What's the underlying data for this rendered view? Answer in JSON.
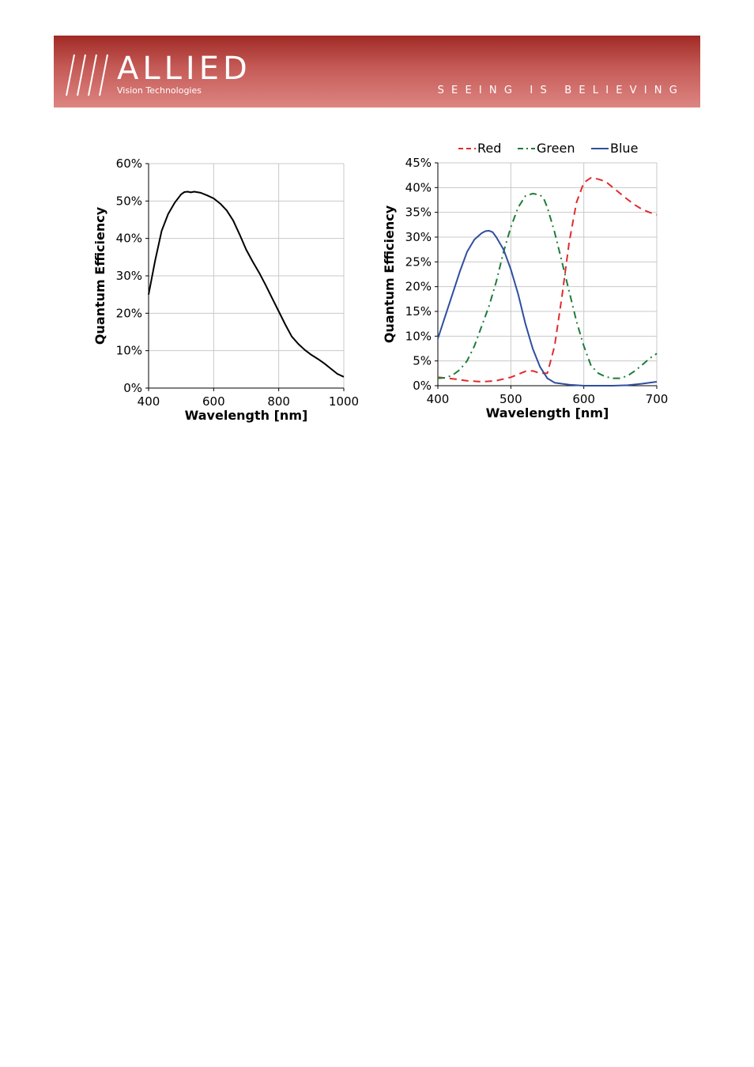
{
  "header": {
    "brand": "ALLIED",
    "brand_sub": "Vision Technologies",
    "tagline": "SEEING IS BELIEVING",
    "colors": {
      "banner_top": "#a12a25",
      "banner_bottom": "#dd8582"
    }
  },
  "chart_data": [
    {
      "type": "line",
      "title": "",
      "xlabel": "Wavelength [nm]",
      "ylabel": "Quantum Efficiency",
      "xlim": [
        400,
        1000
      ],
      "ylim": [
        0,
        60
      ],
      "xticks": [
        400,
        600,
        800,
        1000
      ],
      "xtick_labels": [
        "400",
        "600",
        "800",
        "1000"
      ],
      "yticks": [
        0,
        10,
        20,
        30,
        40,
        50,
        60
      ],
      "ytick_labels": [
        "0%",
        "10%",
        "20%",
        "30%",
        "40%",
        "50%",
        "60%"
      ],
      "grid": true,
      "legend": "none",
      "series": [
        {
          "name": "",
          "color": "#000000",
          "style": "solid",
          "x": [
            400,
            420,
            440,
            460,
            480,
            500,
            510,
            520,
            530,
            540,
            560,
            580,
            600,
            620,
            640,
            660,
            680,
            700,
            720,
            740,
            760,
            780,
            800,
            820,
            840,
            860,
            880,
            900,
            920,
            940,
            960,
            980,
            1000
          ],
          "y": [
            25,
            34,
            42,
            46.5,
            49.5,
            51.8,
            52.4,
            52.5,
            52.3,
            52.5,
            52.2,
            51.5,
            50.7,
            49.3,
            47.5,
            44.8,
            41,
            37,
            33.8,
            30.8,
            27.5,
            24,
            20.5,
            17,
            13.8,
            11.8,
            10.2,
            8.9,
            7.8,
            6.6,
            5.2,
            3.8,
            3
          ]
        }
      ]
    },
    {
      "type": "line",
      "title": "",
      "xlabel": "Wavelength [nm]",
      "ylabel": "Quantum Efficiency",
      "xlim": [
        400,
        700
      ],
      "ylim": [
        0,
        45
      ],
      "xticks": [
        400,
        500,
        600,
        700
      ],
      "xtick_labels": [
        "400",
        "500",
        "600",
        "700"
      ],
      "yticks": [
        0,
        5,
        10,
        15,
        20,
        25,
        30,
        35,
        40,
        45
      ],
      "ytick_labels": [
        "0%",
        "5%",
        "10%",
        "15%",
        "20%",
        "25%",
        "30%",
        "35%",
        "40%",
        "45%"
      ],
      "grid": true,
      "legend": "top",
      "series": [
        {
          "name": "Red",
          "color": "#e02b2b",
          "style": "dashed",
          "x": [
            400,
            420,
            440,
            460,
            480,
            500,
            510,
            520,
            530,
            540,
            550,
            560,
            570,
            580,
            590,
            600,
            610,
            620,
            630,
            640,
            650,
            660,
            670,
            680,
            690,
            700
          ],
          "y": [
            1.7,
            1.4,
            1.0,
            0.8,
            1.0,
            1.7,
            2.3,
            2.9,
            3.0,
            2.5,
            2.5,
            8,
            18,
            29,
            37,
            41,
            42,
            41.7,
            41.2,
            40,
            38.8,
            37.6,
            36.5,
            35.6,
            35,
            34.5
          ]
        },
        {
          "name": "Green",
          "color": "#1f7b3a",
          "style": "dashdot",
          "x": [
            400,
            410,
            420,
            430,
            440,
            450,
            460,
            470,
            480,
            490,
            500,
            510,
            520,
            530,
            540,
            545,
            550,
            560,
            570,
            580,
            590,
            600,
            610,
            620,
            630,
            640,
            650,
            660,
            670,
            680,
            690,
            700
          ],
          "y": [
            1.5,
            1.6,
            2.1,
            3.2,
            5.0,
            8.0,
            12,
            16,
            21,
            27,
            32,
            36,
            38.3,
            38.8,
            38.5,
            37.8,
            36,
            31,
            25,
            19,
            13,
            8,
            4,
            2.5,
            1.8,
            1.5,
            1.5,
            2.0,
            3.0,
            4.2,
            5.5,
            6.5
          ]
        },
        {
          "name": "Blue",
          "color": "#2f4e9e",
          "style": "solid",
          "x": [
            400,
            410,
            420,
            430,
            440,
            450,
            460,
            465,
            470,
            475,
            480,
            490,
            500,
            510,
            520,
            530,
            540,
            550,
            560,
            570,
            580,
            590,
            600,
            620,
            640,
            660,
            680,
            700
          ],
          "y": [
            9.5,
            14,
            18.5,
            23,
            27,
            29.5,
            30.8,
            31.2,
            31.3,
            31.0,
            30,
            27.5,
            23.5,
            18.5,
            12.5,
            7.5,
            3.8,
            1.5,
            0.6,
            0.4,
            0.2,
            0.1,
            0.0,
            0.0,
            0.0,
            0.1,
            0.4,
            0.8
          ]
        }
      ]
    }
  ]
}
